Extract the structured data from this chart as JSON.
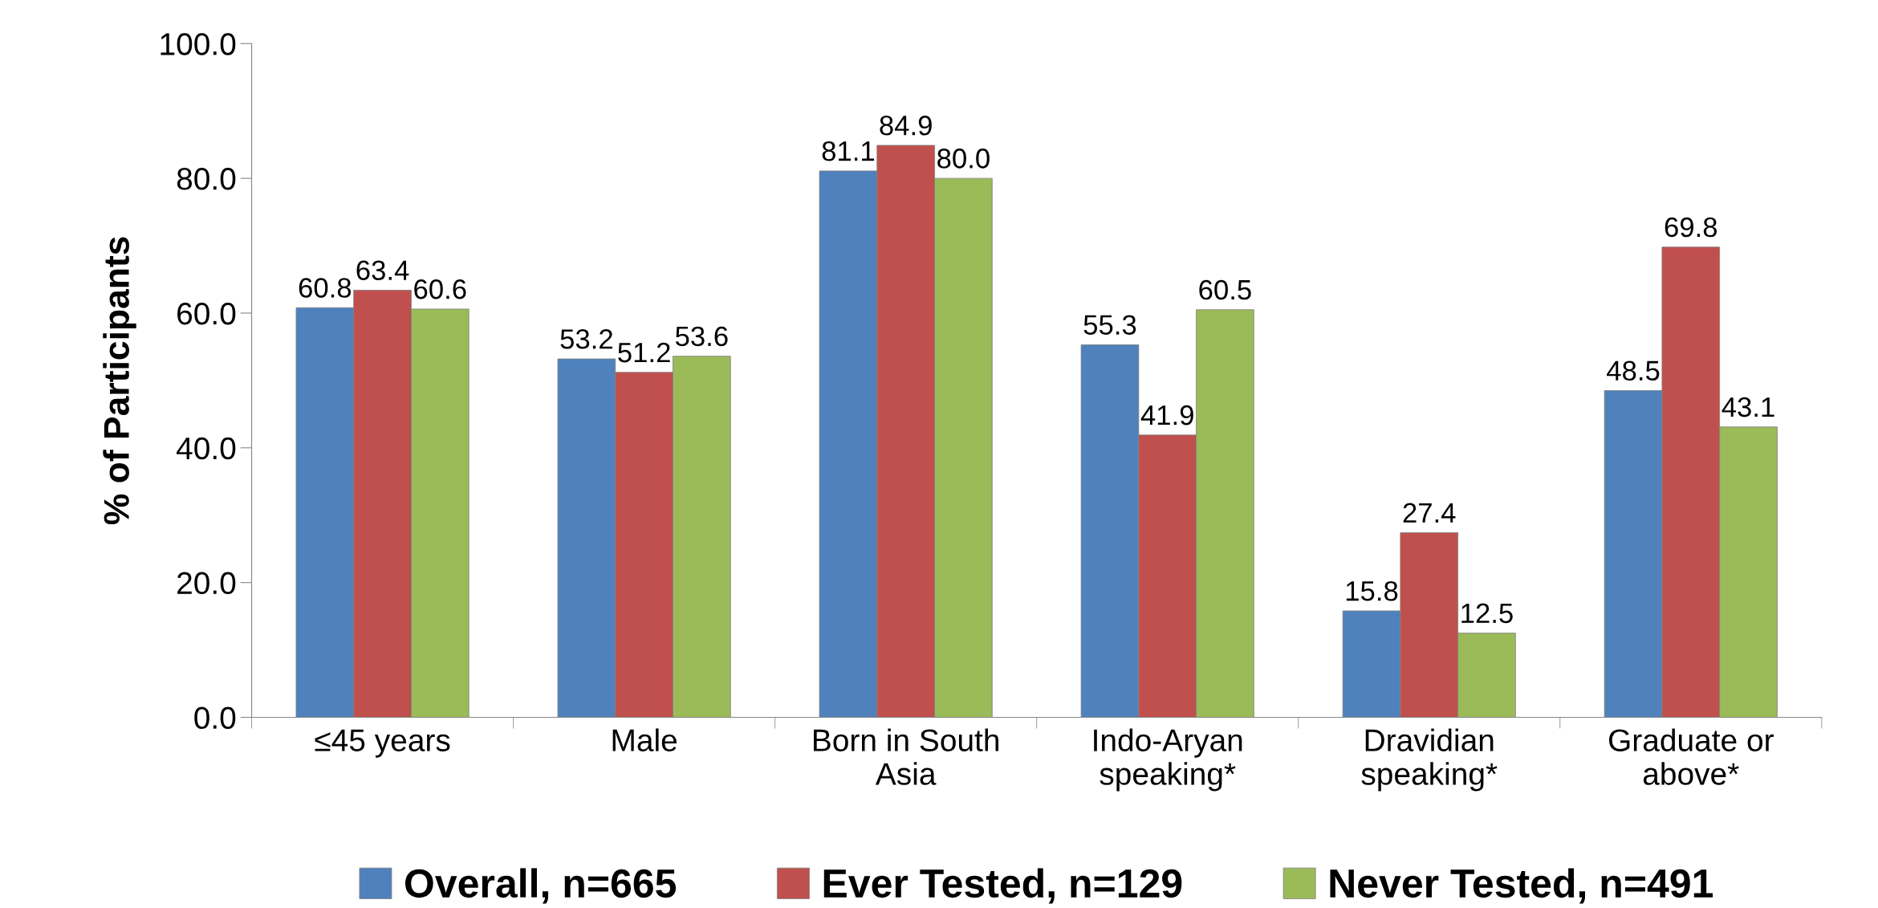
{
  "chart_data": {
    "type": "bar",
    "ylabel": "% of Participants",
    "categories": [
      "≤45 years",
      "Male",
      "Born in South\nAsia",
      "Indo-Aryan\nspeaking*",
      "Dravidian\nspeaking*",
      "Graduate or\nabove*"
    ],
    "series": [
      {
        "name": "Overall, n=665",
        "color": "#4f81bd",
        "values": [
          60.8,
          53.2,
          81.1,
          55.3,
          15.8,
          48.5
        ],
        "value_labels": [
          "60.8",
          "53.2",
          "81.1",
          "55.3",
          "15.8",
          "48.5"
        ]
      },
      {
        "name": "Ever Tested, n=129",
        "color": "#c0504d",
        "values": [
          63.4,
          51.2,
          84.9,
          41.9,
          27.4,
          69.8
        ],
        "value_labels": [
          "63.4",
          "51.2",
          "84.9",
          "41.9",
          "27.4",
          "69.8"
        ]
      },
      {
        "name": "Never Tested, n=491",
        "color": "#9bbb59",
        "values": [
          60.6,
          53.6,
          80.0,
          60.5,
          12.5,
          43.1
        ],
        "value_labels": [
          "60.6",
          "53.6",
          "80.0",
          "60.5",
          "12.5",
          "43.1"
        ]
      }
    ],
    "ylim": [
      0,
      100
    ],
    "yticks": [
      {
        "value": 0,
        "label": "0.0"
      },
      {
        "value": 20,
        "label": "20.0"
      },
      {
        "value": 40,
        "label": "40.0"
      },
      {
        "value": 60,
        "label": "60.0"
      },
      {
        "value": 80,
        "label": "80.0"
      },
      {
        "value": 100,
        "label": "100.0"
      }
    ],
    "grid": false,
    "legend": "bottom"
  }
}
